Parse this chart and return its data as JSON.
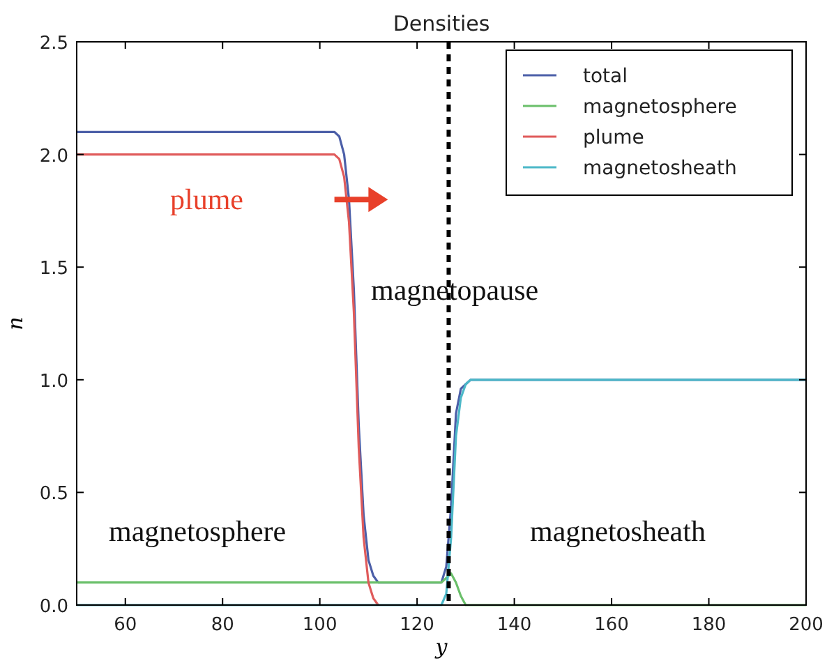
{
  "chart_data": {
    "type": "line",
    "title": "Densities",
    "xlabel": "y",
    "ylabel": "n",
    "xlim": [
      50,
      200
    ],
    "xticks": [
      60,
      80,
      100,
      120,
      140,
      160,
      180,
      200
    ],
    "ylim": [
      0,
      2.5
    ],
    "yticks": [
      {
        "value": 0,
        "label": "0.0"
      },
      {
        "value": 0.5,
        "label": "0.5"
      },
      {
        "value": 1,
        "label": "1.0"
      },
      {
        "value": 1.5,
        "label": "1.5"
      },
      {
        "value": 2,
        "label": "2.0"
      },
      {
        "value": 2.5,
        "label": "2.5"
      }
    ],
    "legend": "top right",
    "grid": false,
    "line_style": "solid",
    "series": [
      {
        "name": "total",
        "color": "#4c5fa8",
        "x": [
          50,
          103,
          104,
          105,
          106,
          107,
          108,
          109,
          110,
          111,
          112,
          124,
          125,
          126,
          127,
          128,
          129,
          130,
          131,
          200
        ],
        "values": [
          2.1,
          2.1,
          2.08,
          2.0,
          1.8,
          1.4,
          0.8,
          0.4,
          0.2,
          0.13,
          0.1,
          0.1,
          0.1,
          0.17,
          0.44,
          0.85,
          0.96,
          0.98,
          1.0,
          1.0
        ]
      },
      {
        "name": "magnetosphere",
        "color": "#6abf6a",
        "x": [
          50,
          124,
          125,
          126,
          127,
          128,
          129,
          130,
          200
        ],
        "values": [
          0.1,
          0.1,
          0.1,
          0.12,
          0.14,
          0.1,
          0.04,
          0,
          0
        ]
      },
      {
        "name": "plume",
        "color": "#e05b5b",
        "x": [
          50,
          103,
          104,
          105,
          106,
          107,
          108,
          109,
          110,
          111,
          112
        ],
        "values": [
          2.0,
          2.0,
          1.98,
          1.9,
          1.7,
          1.3,
          0.7,
          0.3,
          0.1,
          0.03,
          0
        ]
      },
      {
        "name": "magnetosheath",
        "color": "#4cb8c8",
        "x": [
          50,
          125,
          126,
          127,
          128,
          129,
          130,
          131,
          200
        ],
        "values": [
          0,
          0,
          0.05,
          0.3,
          0.75,
          0.92,
          0.98,
          1.0,
          1.0
        ]
      }
    ],
    "ref_lines": [
      {
        "axis": "x",
        "value": 126.5,
        "color": "#000000",
        "line_style": "dashed"
      }
    ],
    "annotations": [
      "plume",
      "magnetopause",
      "magnetosphere",
      "magnetosheath"
    ]
  }
}
